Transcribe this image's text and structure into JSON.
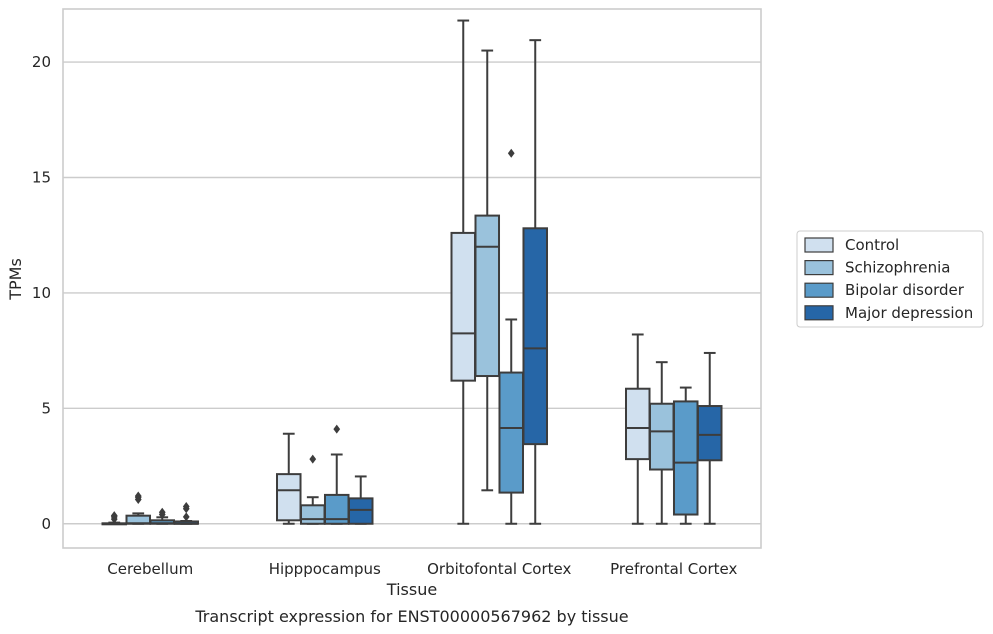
{
  "caption": "Transcript expression for ENST00000567962 by tissue",
  "chart_data": {
    "type": "box",
    "xlabel": "Tissue",
    "ylabel": "TPMs",
    "ylim": [
      -1.05,
      22.3
    ],
    "yticks": [
      0,
      5,
      10,
      15,
      20
    ],
    "grid": "horizontal",
    "legend_position": "right",
    "categories": [
      "Cerebellum",
      "Hipppocampus",
      "Orbitofontal Cortex",
      "Prefrontal Cortex"
    ],
    "series": [
      {
        "name": "Control",
        "color": "#d0e0ef",
        "boxes": [
          {
            "min": 0,
            "q1": 0,
            "median": 0,
            "q3": 0.02,
            "max": 0.05,
            "outliers": [
              0.2,
              0.3,
              0.35
            ]
          },
          {
            "min": 0,
            "q1": 0.15,
            "median": 1.45,
            "q3": 2.15,
            "max": 3.9,
            "outliers": []
          },
          {
            "min": 0,
            "q1": 6.2,
            "median": 8.25,
            "q3": 12.6,
            "max": 21.8,
            "outliers": []
          },
          {
            "min": 0,
            "q1": 2.8,
            "median": 4.15,
            "q3": 5.85,
            "max": 8.2,
            "outliers": []
          }
        ]
      },
      {
        "name": "Schizophrenia",
        "color": "#9ac2dc",
        "boxes": [
          {
            "min": 0,
            "q1": 0,
            "median": 0.02,
            "q3": 0.35,
            "max": 0.45,
            "outliers": [
              1.05,
              1.15,
              1.2
            ]
          },
          {
            "min": 0,
            "q1": 0,
            "median": 0.2,
            "q3": 0.8,
            "max": 1.15,
            "outliers": [
              2.8
            ]
          },
          {
            "min": 1.45,
            "q1": 6.4,
            "median": 12.0,
            "q3": 13.35,
            "max": 20.5,
            "outliers": []
          },
          {
            "min": 0,
            "q1": 2.35,
            "median": 4.0,
            "q3": 5.2,
            "max": 7.0,
            "outliers": []
          }
        ]
      },
      {
        "name": "Bipolar disorder",
        "color": "#5a9bc9",
        "boxes": [
          {
            "min": 0,
            "q1": 0,
            "median": 0.02,
            "q3": 0.15,
            "max": 0.28,
            "outliers": [
              0.4,
              0.5
            ]
          },
          {
            "min": 0,
            "q1": 0,
            "median": 0.2,
            "q3": 1.25,
            "max": 3.0,
            "outliers": [
              4.1
            ]
          },
          {
            "min": 0,
            "q1": 1.35,
            "median": 4.15,
            "q3": 6.55,
            "max": 8.85,
            "outliers": [
              16.05
            ]
          },
          {
            "min": 0,
            "q1": 0.4,
            "median": 2.65,
            "q3": 5.3,
            "max": 5.9,
            "outliers": []
          }
        ]
      },
      {
        "name": "Major depression",
        "color": "#2666a7",
        "boxes": [
          {
            "min": 0,
            "q1": 0,
            "median": 0,
            "q3": 0.1,
            "max": 0.12,
            "outliers": [
              0.3,
              0.65,
              0.75
            ]
          },
          {
            "min": 0,
            "q1": 0,
            "median": 0.6,
            "q3": 1.1,
            "max": 2.05,
            "outliers": []
          },
          {
            "min": 0,
            "q1": 3.45,
            "median": 7.6,
            "q3": 12.8,
            "max": 20.95,
            "outliers": []
          },
          {
            "min": 0,
            "q1": 2.75,
            "median": 3.85,
            "q3": 5.1,
            "max": 7.4,
            "outliers": []
          }
        ]
      }
    ]
  }
}
